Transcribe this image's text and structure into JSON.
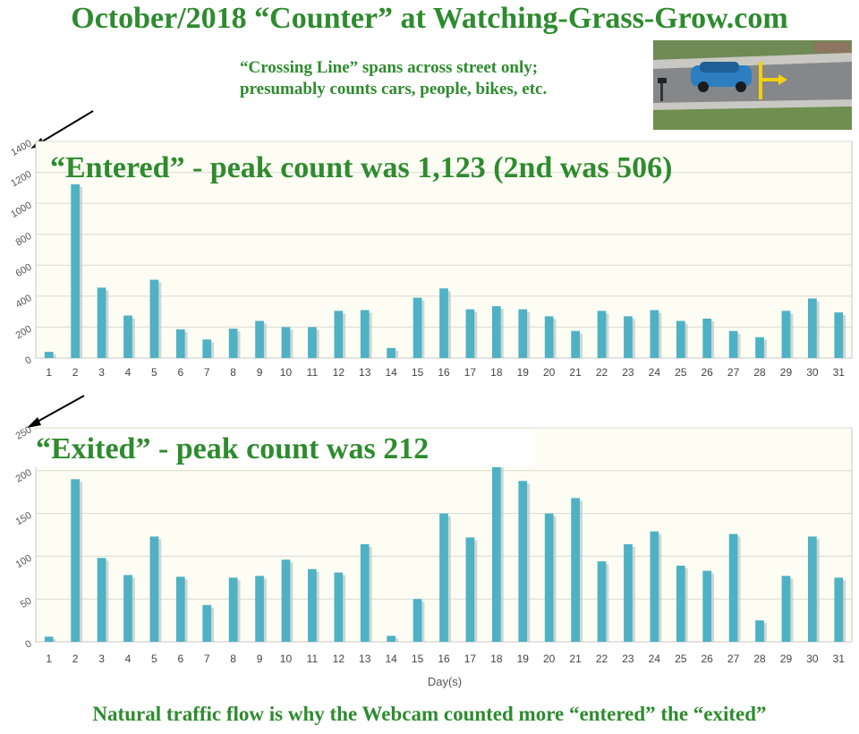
{
  "header": {
    "title": "October/2018 “Counter” at Watching-Grass-Grow.com",
    "note_line1": "“Crossing Line” spans across street only;",
    "note_line2": "presumably counts cars, people, bikes, etc."
  },
  "footer": {
    "note": "Natural traffic flow is why the Webcam counted more “entered” the “exited”"
  },
  "colors": {
    "title_green": "#2e8b2e",
    "bar": "#4fb1c4",
    "plot_bg": "#fdfdf4"
  },
  "chart_data": [
    {
      "type": "bar",
      "title": "“Entered” - peak count was 1,123 (2nd was 506)",
      "categories": [
        "1",
        "2",
        "3",
        "4",
        "5",
        "6",
        "7",
        "8",
        "9",
        "10",
        "11",
        "12",
        "13",
        "14",
        "15",
        "16",
        "17",
        "18",
        "19",
        "20",
        "21",
        "22",
        "23",
        "24",
        "25",
        "26",
        "27",
        "28",
        "29",
        "30",
        "31"
      ],
      "values": [
        40,
        1123,
        455,
        275,
        506,
        185,
        120,
        190,
        240,
        200,
        200,
        305,
        310,
        65,
        390,
        450,
        315,
        335,
        315,
        270,
        175,
        305,
        270,
        310,
        240,
        255,
        175,
        135,
        305,
        385,
        295
      ],
      "ylim": [
        0,
        1400
      ],
      "yticks": [
        0,
        200,
        400,
        600,
        800,
        1000,
        1200,
        1400
      ],
      "xlabel": "",
      "ylabel": "",
      "grid": true
    },
    {
      "type": "bar",
      "title": "“Exited” - peak count was 212",
      "categories": [
        "1",
        "2",
        "3",
        "4",
        "5",
        "6",
        "7",
        "8",
        "9",
        "10",
        "11",
        "12",
        "13",
        "14",
        "15",
        "16",
        "17",
        "18",
        "19",
        "20",
        "21",
        "22",
        "23",
        "24",
        "25",
        "26",
        "27",
        "28",
        "29",
        "30",
        "31"
      ],
      "values": [
        6,
        190,
        98,
        78,
        123,
        76,
        43,
        75,
        77,
        96,
        85,
        81,
        114,
        7,
        50,
        150,
        122,
        212,
        188,
        150,
        168,
        94,
        114,
        129,
        89,
        83,
        126,
        25,
        77,
        123,
        75
      ],
      "ylim": [
        0,
        250
      ],
      "yticks": [
        0,
        50,
        100,
        150,
        200,
        250
      ],
      "xlabel": "Day(s)",
      "ylabel": "",
      "grid": true
    }
  ]
}
